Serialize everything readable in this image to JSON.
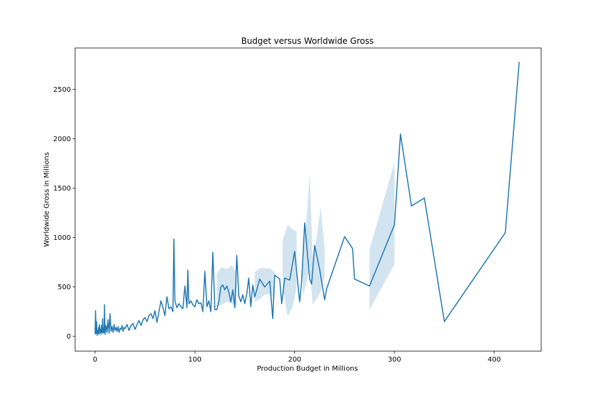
{
  "chart_data": {
    "type": "line",
    "title": "Budget versus Worldwide Gross",
    "xlabel": "Production Budget in Millions",
    "ylabel": "Worldwide Gross in Millions",
    "xlim": [
      -20,
      447
    ],
    "ylim": [
      -150,
      2920
    ],
    "xticks": [
      0,
      100,
      200,
      300,
      400
    ],
    "yticks": [
      0,
      500,
      1000,
      1500,
      2000,
      2500
    ],
    "grid": false,
    "legend": "none",
    "colors": {
      "line": "#1f77b4",
      "band": "#1f77b4"
    },
    "series": [
      {
        "x": [
          0,
          0.5,
          1,
          1.5,
          2,
          2.5,
          3,
          3.5,
          4,
          4.5,
          5,
          5.5,
          6,
          6.5,
          7,
          7.5,
          8,
          8.5,
          9,
          9.5,
          10,
          11,
          12,
          13,
          14,
          15,
          16,
          17,
          18,
          19,
          20,
          21,
          22,
          23,
          24,
          25,
          26,
          27,
          28,
          29,
          30,
          32,
          34,
          36,
          38,
          40,
          42,
          44,
          46,
          48,
          50,
          52,
          54,
          56,
          58,
          60,
          62,
          64,
          66,
          68,
          70,
          72,
          74,
          76,
          78,
          79,
          80,
          82,
          84,
          86,
          88,
          90,
          92,
          93,
          94,
          96,
          98,
          100,
          102,
          104,
          106,
          108,
          110,
          112,
          114,
          116,
          118,
          120,
          122,
          124,
          126,
          128,
          130,
          132,
          134,
          136,
          138,
          140,
          142,
          144,
          146,
          148,
          150,
          152,
          154,
          156,
          158,
          160,
          162,
          165,
          170,
          175,
          178,
          180,
          185,
          187,
          190,
          195,
          200,
          205,
          207,
          210,
          215,
          217,
          220,
          225,
          230,
          232,
          250,
          258,
          260,
          275,
          300,
          306,
          317,
          330,
          350,
          411,
          425
        ],
        "y": [
          20,
          260,
          30,
          150,
          10,
          60,
          30,
          90,
          20,
          120,
          40,
          70,
          20,
          110,
          40,
          180,
          30,
          80,
          40,
          320,
          20,
          110,
          40,
          170,
          30,
          230,
          50,
          100,
          40,
          120,
          60,
          90,
          50,
          100,
          40,
          80,
          70,
          110,
          50,
          90,
          80,
          120,
          60,
          110,
          130,
          70,
          120,
          160,
          110,
          170,
          190,
          150,
          210,
          230,
          180,
          260,
          140,
          250,
          360,
          290,
          210,
          400,
          280,
          300,
          250,
          985,
          360,
          290,
          330,
          300,
          280,
          510,
          290,
          670,
          330,
          360,
          320,
          300,
          370,
          330,
          340,
          250,
          660,
          300,
          360,
          250,
          850,
          270,
          270,
          350,
          500,
          520,
          470,
          510,
          450,
          350,
          470,
          290,
          820,
          410,
          350,
          420,
          330,
          430,
          590,
          300,
          520,
          400,
          470,
          580,
          500,
          560,
          180,
          620,
          580,
          330,
          590,
          570,
          860,
          350,
          560,
          1150,
          580,
          530,
          920,
          680,
          370,
          480,
          1010,
          890,
          580,
          510,
          1130,
          2050,
          1320,
          1400,
          150,
          1050,
          2780
        ]
      }
    ],
    "bands": [
      {
        "x": [
          122,
          127,
          132,
          137,
          142
        ],
        "lower": [
          300,
          320,
          350,
          330,
          300
        ],
        "upper": [
          640,
          700,
          680,
          720,
          640
        ]
      },
      {
        "x": [
          160,
          165,
          170,
          175,
          180
        ],
        "lower": [
          350,
          380,
          420,
          430,
          380
        ],
        "upper": [
          650,
          690,
          690,
          690,
          650
        ]
      },
      {
        "x": [
          188,
          193,
          198,
          202
        ],
        "lower": [
          480,
          200,
          300,
          500
        ],
        "upper": [
          970,
          1130,
          1080,
          1060
        ]
      },
      {
        "x": [
          208,
          212,
          215,
          218,
          222,
          226,
          230
        ],
        "lower": [
          400,
          550,
          700,
          320,
          380,
          450,
          600
        ],
        "upper": [
          800,
          1200,
          1650,
          800,
          1000,
          1310,
          900
        ]
      },
      {
        "x": [
          275,
          300
        ],
        "lower": [
          270,
          730
        ],
        "upper": [
          880,
          1760
        ]
      }
    ]
  }
}
